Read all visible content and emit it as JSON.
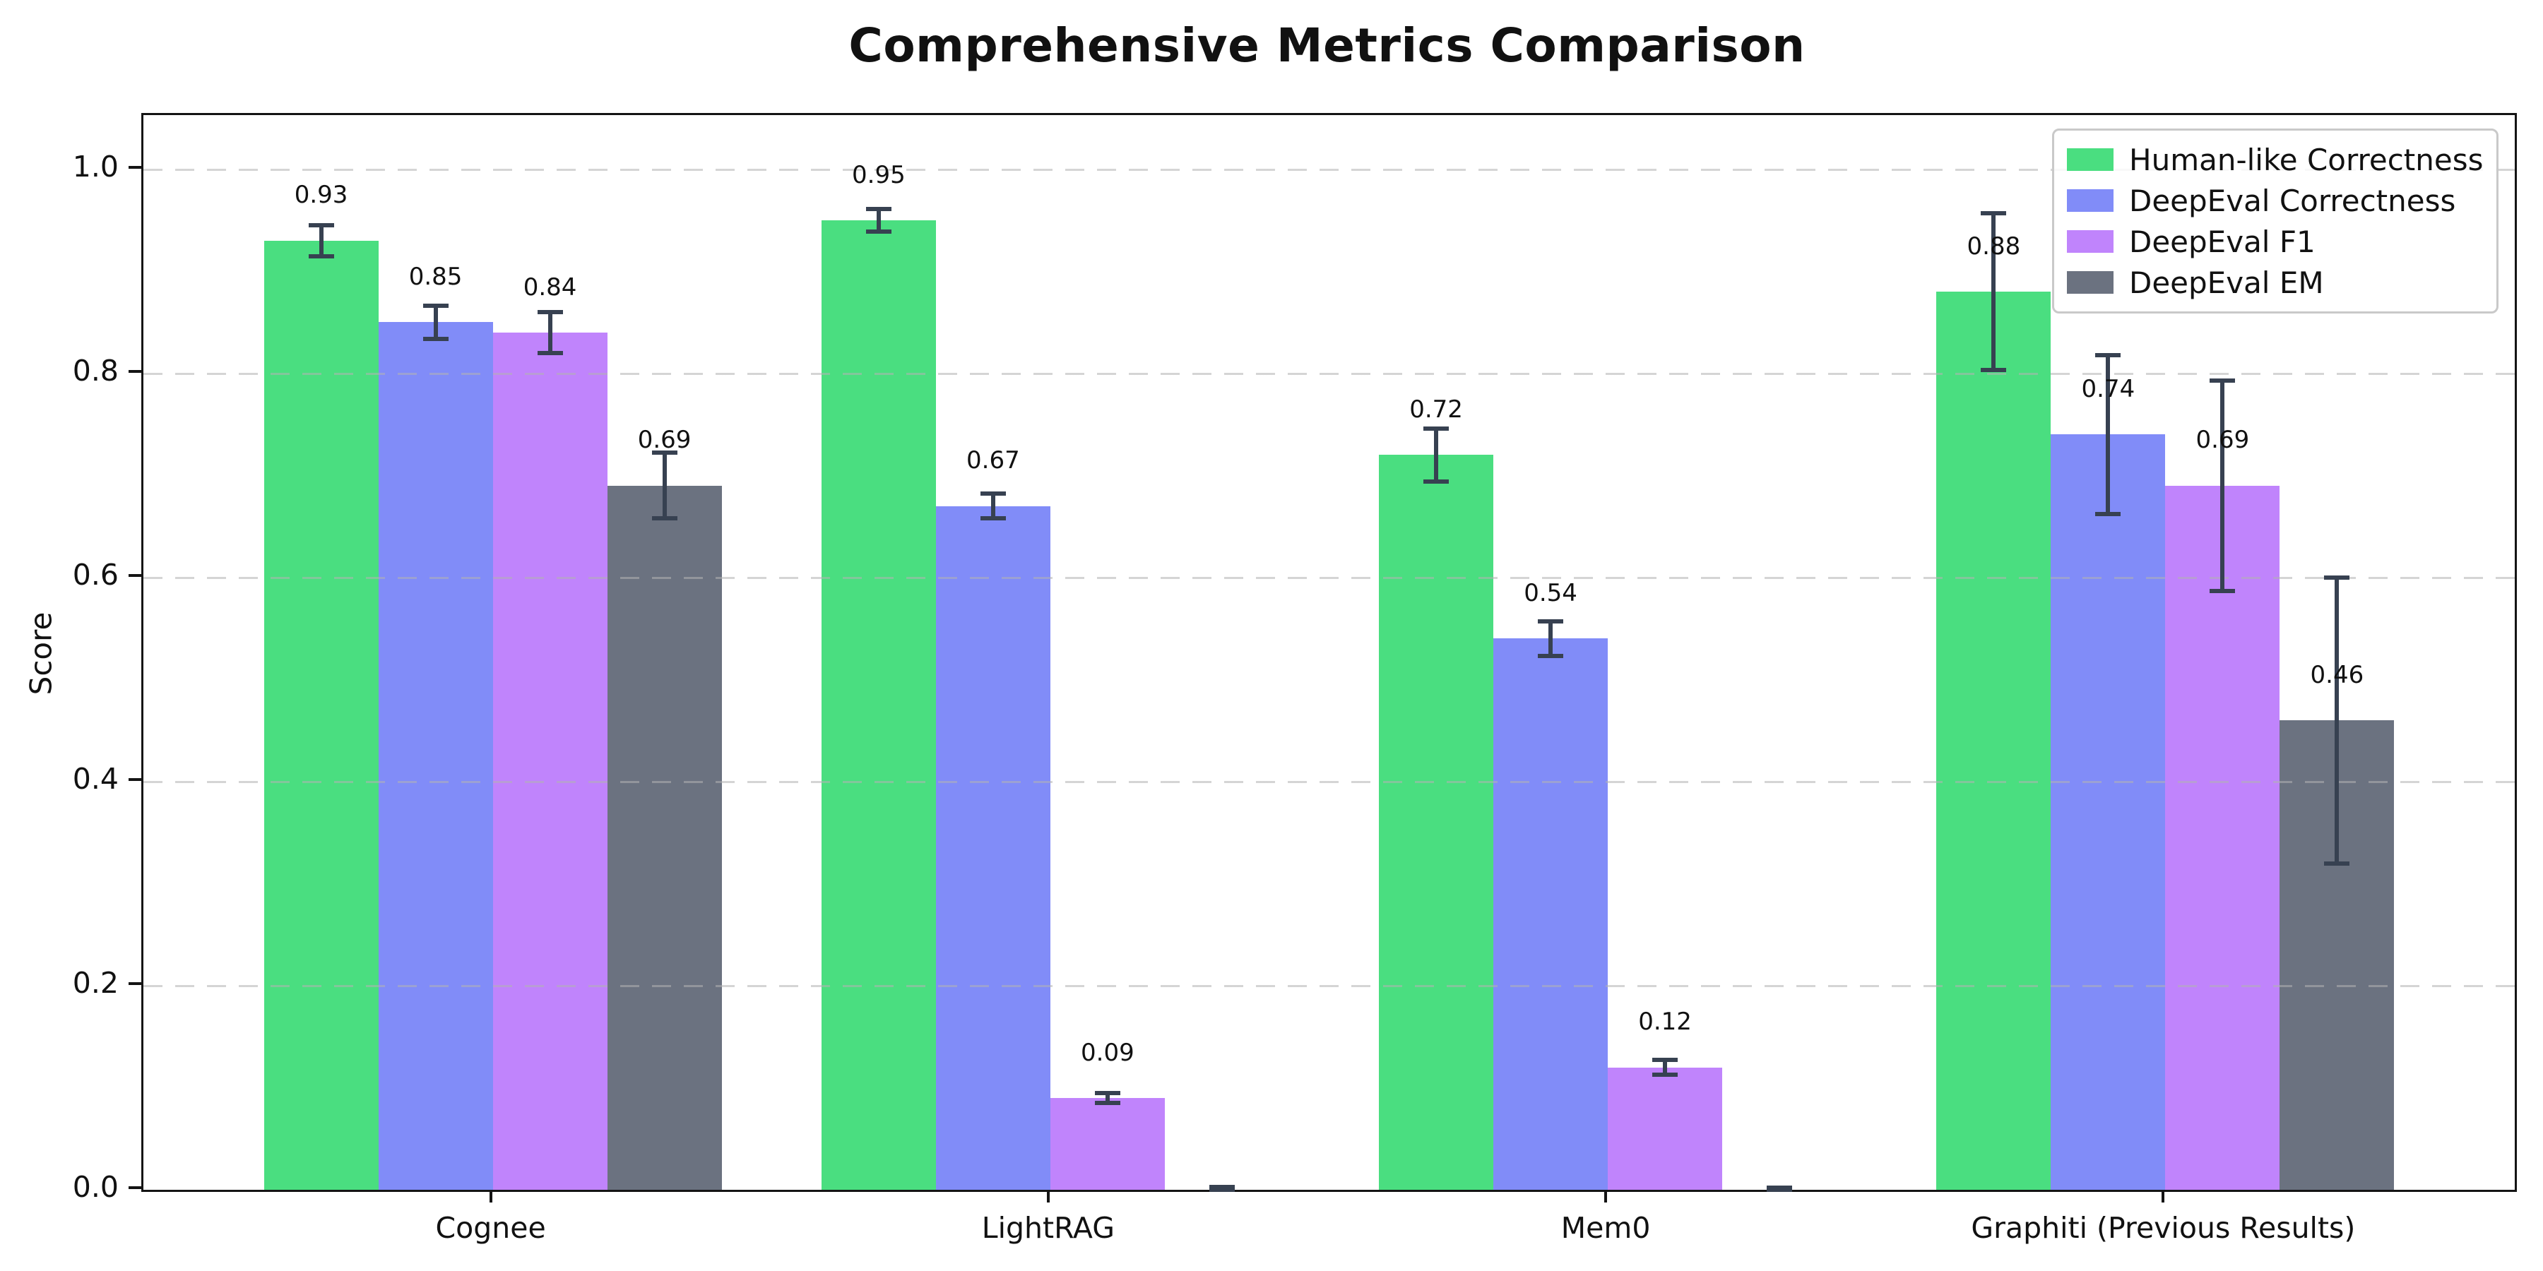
{
  "figure": {
    "title": "Comprehensive Metrics Comparison",
    "background_color": "#ffffff"
  },
  "chart_data": {
    "type": "bar",
    "title": "Comprehensive Metrics Comparison",
    "xlabel": "",
    "ylabel": "Score",
    "categories": [
      "Cognee",
      "LightRAG",
      "Mem0",
      "Graphiti (Previous Results)"
    ],
    "series": [
      {
        "name": "Human-like Correctness",
        "color": "#4ade80",
        "values": [
          0.93,
          0.95,
          0.72,
          0.88
        ],
        "errors": [
          0.015,
          0.011,
          0.026,
          0.077
        ],
        "labels": [
          "0.93",
          "0.95",
          "0.72",
          "0.88"
        ]
      },
      {
        "name": "DeepEval Correctness",
        "color": "#818cf8",
        "values": [
          0.85,
          0.67,
          0.54,
          0.74
        ],
        "errors": [
          0.016,
          0.012,
          0.017,
          0.078
        ],
        "labels": [
          "0.85",
          "0.67",
          "0.54",
          "0.74"
        ]
      },
      {
        "name": "DeepEval F1",
        "color": "#c084fc",
        "values": [
          0.84,
          0.09,
          0.12,
          0.69
        ],
        "errors": [
          0.02,
          0.005,
          0.007,
          0.103
        ],
        "labels": [
          "0.84",
          "0.09",
          "0.12",
          "0.69"
        ]
      },
      {
        "name": "DeepEval EM",
        "color": "#6b7280",
        "values": [
          0.69,
          0.0,
          0.0,
          0.46
        ],
        "errors": [
          0.032,
          0.003,
          0.002,
          0.14
        ],
        "labels": [
          "0.69",
          "",
          "",
          "0.46"
        ]
      }
    ],
    "yticks": [
      {
        "value": 0.0,
        "label": "0.0"
      },
      {
        "value": 0.2,
        "label": "0.2"
      },
      {
        "value": 0.4,
        "label": "0.4"
      },
      {
        "value": 0.6,
        "label": "0.6"
      },
      {
        "value": 0.8,
        "label": "0.8"
      },
      {
        "value": 1.0,
        "label": "1.0"
      }
    ],
    "ylim": [
      0,
      1.053
    ],
    "grid": {
      "axis": "y",
      "style": "dashed",
      "color": "#b2b2b2",
      "drawn_over_bars": true
    },
    "legend_position": "upper right",
    "error_bar_color": "#374151",
    "value_label_offset": 0.03
  }
}
